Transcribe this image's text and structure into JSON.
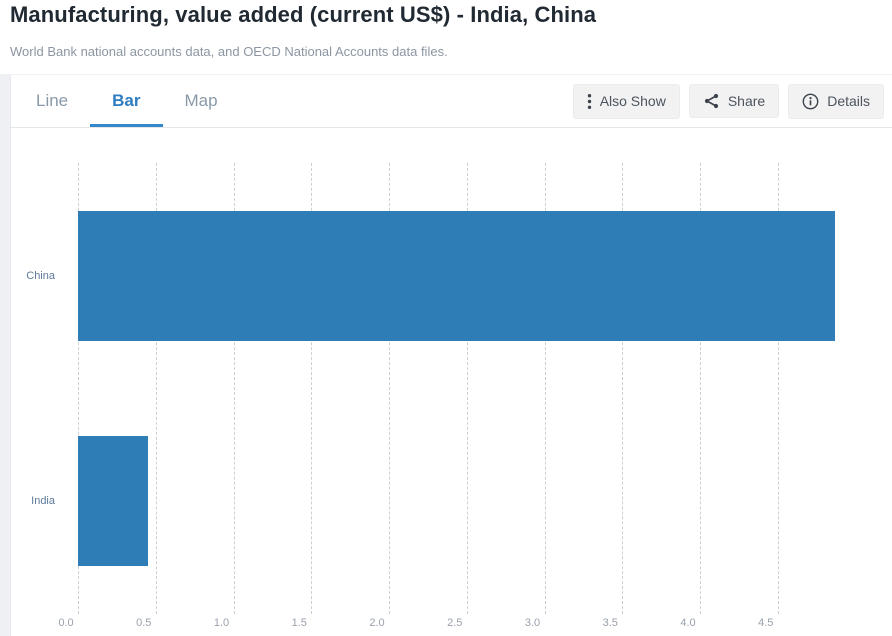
{
  "header": {
    "title": "Manufacturing, value added (current US$) - India, China",
    "subtitle": "World Bank national accounts data, and OECD National Accounts data files."
  },
  "toolbar": {
    "tabs": [
      {
        "id": "line",
        "label": "Line",
        "active": false
      },
      {
        "id": "bar",
        "label": "Bar",
        "active": true
      },
      {
        "id": "map",
        "label": "Map",
        "active": false
      }
    ],
    "actions": [
      {
        "id": "also-show",
        "label": "Also Show",
        "icon": "kebab-menu-icon"
      },
      {
        "id": "share",
        "label": "Share",
        "icon": "share-icon"
      },
      {
        "id": "details",
        "label": "Details",
        "icon": "info-icon"
      }
    ]
  },
  "chart_data": {
    "type": "bar",
    "orientation": "horizontal",
    "title": "Manufacturing, value added (current US$) - India, China",
    "categories": [
      "China",
      "India"
    ],
    "values": [
      4.87,
      0.45
    ],
    "xticks": [
      "0.0",
      "0.5",
      "1.0",
      "1.5",
      "2.0",
      "2.5",
      "3.0",
      "3.5",
      "4.0",
      "4.5"
    ],
    "xlim": [
      0,
      5.25
    ],
    "grid": "vertical-dashed",
    "legend": "none",
    "bar_color": "#2e7db7",
    "active_view": "Bar"
  }
}
